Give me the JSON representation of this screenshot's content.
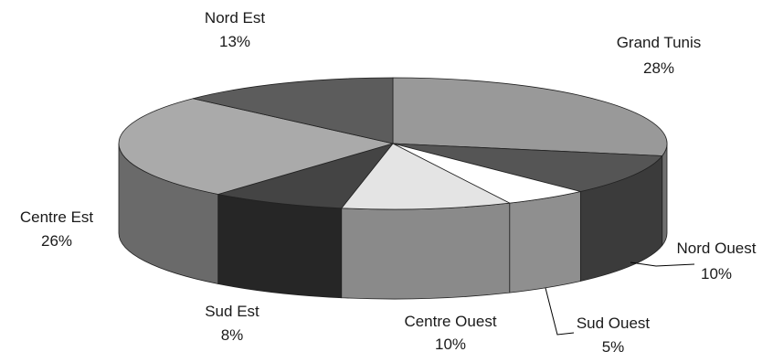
{
  "chart_data": {
    "type": "pie",
    "style": "3d-exploded-none",
    "slices": [
      {
        "label": "Grand Tunis",
        "value": 28,
        "display": "28%",
        "top": "#999999",
        "side": "#6e6e6e"
      },
      {
        "label": "Nord Ouest",
        "value": 10,
        "display": "10%",
        "top": "#555555",
        "side": "#3b3b3b"
      },
      {
        "label": "Sud Ouest",
        "value": 5,
        "display": "5%",
        "top": "#ffffff",
        "side": "#8f8f8f"
      },
      {
        "label": "Centre Ouest",
        "value": 10,
        "display": "10%",
        "top": "#e4e4e4",
        "side": "#8a8a8a"
      },
      {
        "label": "Sud Est",
        "value": 8,
        "display": "8%",
        "top": "#444444",
        "side": "#262626"
      },
      {
        "label": "Centre Est",
        "value": 26,
        "display": "26%",
        "top": "#aaaaaa",
        "side": "#6a6a6a"
      },
      {
        "label": "Nord Est",
        "value": 13,
        "display": "13%",
        "top": "#5c5c5c",
        "side": "#444444"
      }
    ]
  }
}
